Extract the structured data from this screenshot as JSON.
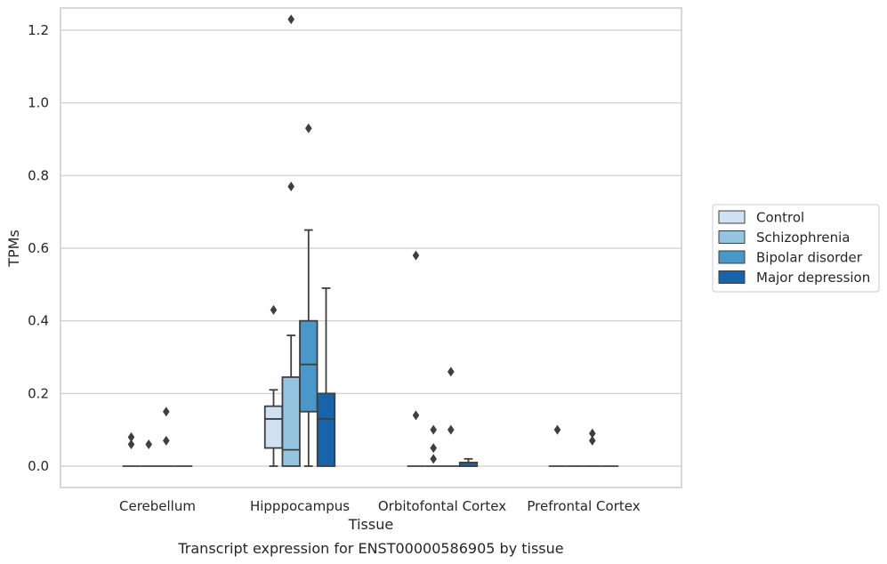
{
  "chart_data": {
    "type": "boxplot",
    "xlabel": "Tissue",
    "ylabel": "TPMs",
    "caption": "Transcript expression for ENST00000586905 by tissue",
    "ylim": [
      -0.06,
      1.29
    ],
    "yticks": [
      0.0,
      0.2,
      0.4,
      0.6,
      0.8,
      1.0,
      1.2
    ],
    "ytick_labels": [
      "0.0",
      "0.2",
      "0.4",
      "0.6",
      "0.8",
      "1.0",
      "1.2"
    ],
    "grid": "horizontal",
    "legend_position": "right",
    "categories": [
      "Cerebellum",
      "Hipppocampus",
      "Orbitofontal Cortex",
      "Prefrontal Cortex"
    ],
    "series": [
      {
        "name": "Control",
        "color": "#d0e1f2",
        "boxes": [
          {
            "q1": 0,
            "median": 0,
            "q3": 0,
            "whisker_low": 0,
            "whisker_high": 0,
            "outliers": [
              0.08,
              0.06
            ]
          },
          {
            "q1": 0.05,
            "median": 0.13,
            "q3": 0.165,
            "whisker_low": 0,
            "whisker_high": 0.21,
            "outliers": [
              0.43
            ]
          },
          {
            "q1": 0,
            "median": 0,
            "q3": 0,
            "whisker_low": 0,
            "whisker_high": 0,
            "outliers": [
              0.58,
              0.14
            ]
          },
          {
            "q1": 0,
            "median": 0,
            "q3": 0,
            "whisker_low": 0,
            "whisker_high": 0,
            "outliers": [
              0.1
            ]
          }
        ]
      },
      {
        "name": "Schizophrenia",
        "color": "#94c4df",
        "boxes": [
          {
            "q1": 0,
            "median": 0,
            "q3": 0,
            "whisker_low": 0,
            "whisker_high": 0,
            "outliers": [
              0.06
            ]
          },
          {
            "q1": 0,
            "median": 0.045,
            "q3": 0.245,
            "whisker_low": 0,
            "whisker_high": 0.36,
            "outliers": [
              1.23,
              0.77
            ]
          },
          {
            "q1": 0,
            "median": 0,
            "q3": 0,
            "whisker_low": 0,
            "whisker_high": 0,
            "outliers": [
              0.1,
              0.05,
              0.02
            ]
          },
          {
            "q1": 0,
            "median": 0,
            "q3": 0,
            "whisker_low": 0,
            "whisker_high": 0,
            "outliers": []
          }
        ]
      },
      {
        "name": "Bipolar disorder",
        "color": "#4a98c9",
        "boxes": [
          {
            "q1": 0,
            "median": 0,
            "q3": 0,
            "whisker_low": 0,
            "whisker_high": 0,
            "outliers": [
              0.15,
              0.07
            ]
          },
          {
            "q1": 0.15,
            "median": 0.28,
            "q3": 0.4,
            "whisker_low": 0,
            "whisker_high": 0.65,
            "outliers": [
              0.93
            ]
          },
          {
            "q1": 0,
            "median": 0,
            "q3": 0,
            "whisker_low": 0,
            "whisker_high": 0,
            "outliers": [
              0.26,
              0.1
            ]
          },
          {
            "q1": 0,
            "median": 0,
            "q3": 0,
            "whisker_low": 0,
            "whisker_high": 0,
            "outliers": [
              0.09,
              0.07
            ]
          }
        ]
      },
      {
        "name": "Major depression",
        "color": "#1764ab",
        "boxes": [
          {
            "q1": 0,
            "median": 0,
            "q3": 0,
            "whisker_low": 0,
            "whisker_high": 0,
            "outliers": []
          },
          {
            "q1": 0,
            "median": 0.13,
            "q3": 0.2,
            "whisker_low": 0,
            "whisker_high": 0.49,
            "outliers": []
          },
          {
            "q1": 0,
            "median": 0,
            "q3": 0.01,
            "whisker_low": 0,
            "whisker_high": 0.02,
            "outliers": []
          },
          {
            "q1": 0,
            "median": 0,
            "q3": 0,
            "whisker_low": 0,
            "whisker_high": 0,
            "outliers": []
          }
        ]
      }
    ]
  },
  "colors": {
    "grid": "#cccccc",
    "frame": "#cccccc",
    "box_edge": "#3f3f3f",
    "outlier": "#3f3f3f"
  }
}
